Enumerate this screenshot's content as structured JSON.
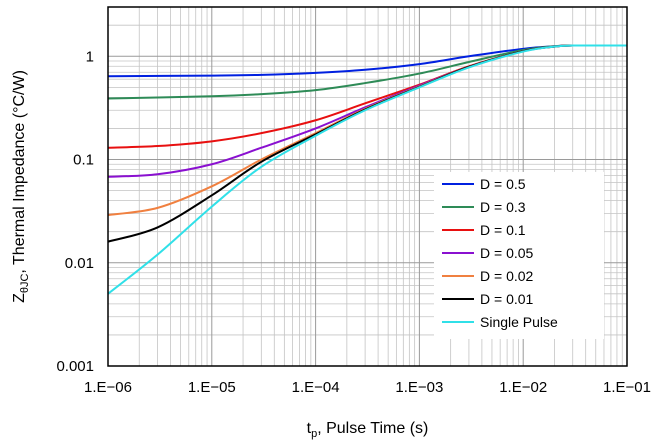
{
  "chart_data": {
    "type": "line",
    "x_scale": "log",
    "y_scale": "log",
    "xlim": [
      1e-06,
      0.1
    ],
    "ylim": [
      0.001,
      3
    ],
    "grid": true,
    "legend_position": "lower-right",
    "xlabel_parts": [
      "t",
      "p",
      ", Pulse Time (s)"
    ],
    "ylabel_parts": [
      "Z",
      "θJC",
      ", Thermal Impedance (°C/W)"
    ],
    "x_ticks": [
      1e-06,
      1e-05,
      0.0001,
      0.001,
      0.01,
      0.1
    ],
    "x_tick_labels": [
      "1.E−06",
      "1.E−05",
      "1.E−04",
      "1.E−03",
      "1.E−02",
      "1.E−01"
    ],
    "y_ticks": [
      0.001,
      0.01,
      0.1,
      1
    ],
    "y_tick_labels": [
      "0.001",
      "0.01",
      "0.1",
      "1"
    ],
    "series": [
      {
        "name": "D = 0.5",
        "color": "#0020e0",
        "x": [
          1e-06,
          1e-05,
          3e-05,
          0.0001,
          0.0003,
          0.001,
          0.003,
          0.01,
          0.02,
          0.03,
          0.1
        ],
        "y": [
          0.64,
          0.65,
          0.66,
          0.69,
          0.74,
          0.84,
          1.0,
          1.18,
          1.25,
          1.27,
          1.27
        ]
      },
      {
        "name": "D = 0.3",
        "color": "#2e8b57",
        "x": [
          1e-06,
          1e-05,
          3e-05,
          0.0001,
          0.0003,
          0.001,
          0.003,
          0.01,
          0.02,
          0.03,
          0.1
        ],
        "y": [
          0.39,
          0.41,
          0.43,
          0.47,
          0.55,
          0.68,
          0.88,
          1.15,
          1.25,
          1.27,
          1.27
        ]
      },
      {
        "name": "D = 0.1",
        "color": "#e81010",
        "x": [
          1e-06,
          3e-06,
          1e-05,
          3e-05,
          0.0001,
          0.0003,
          0.001,
          0.003,
          0.01,
          0.02,
          0.03,
          0.1
        ],
        "y": [
          0.13,
          0.135,
          0.15,
          0.18,
          0.24,
          0.35,
          0.53,
          0.8,
          1.12,
          1.24,
          1.27,
          1.27
        ]
      },
      {
        "name": "D = 0.05",
        "color": "#8a10d0",
        "x": [
          1e-06,
          3e-06,
          1e-05,
          3e-05,
          0.0001,
          0.0003,
          0.001,
          0.003,
          0.01,
          0.02,
          0.03,
          0.1
        ],
        "y": [
          0.068,
          0.072,
          0.09,
          0.13,
          0.2,
          0.32,
          0.52,
          0.79,
          1.12,
          1.24,
          1.27,
          1.27
        ]
      },
      {
        "name": "D = 0.02",
        "color": "#f08040",
        "x": [
          1e-06,
          3e-06,
          1e-05,
          3e-05,
          0.0001,
          0.0003,
          0.001,
          0.003,
          0.01,
          0.02,
          0.03,
          0.1
        ],
        "y": [
          0.029,
          0.034,
          0.055,
          0.1,
          0.18,
          0.31,
          0.51,
          0.79,
          1.12,
          1.24,
          1.27,
          1.27
        ]
      },
      {
        "name": "D = 0.01",
        "color": "#000000",
        "x": [
          1e-06,
          3e-06,
          1e-05,
          3e-05,
          0.0001,
          0.0003,
          0.001,
          0.003,
          0.01,
          0.02,
          0.03,
          0.1
        ],
        "y": [
          0.016,
          0.022,
          0.045,
          0.095,
          0.175,
          0.305,
          0.505,
          0.79,
          1.12,
          1.24,
          1.27,
          1.27
        ]
      },
      {
        "name": "Single Pulse",
        "color": "#30e0e8",
        "x": [
          1e-06,
          3e-06,
          1e-05,
          3e-05,
          0.0001,
          0.0003,
          0.001,
          0.003,
          0.01,
          0.02,
          0.03,
          0.1
        ],
        "y": [
          0.005,
          0.012,
          0.035,
          0.085,
          0.17,
          0.3,
          0.5,
          0.78,
          1.11,
          1.24,
          1.27,
          1.27
        ]
      }
    ]
  }
}
